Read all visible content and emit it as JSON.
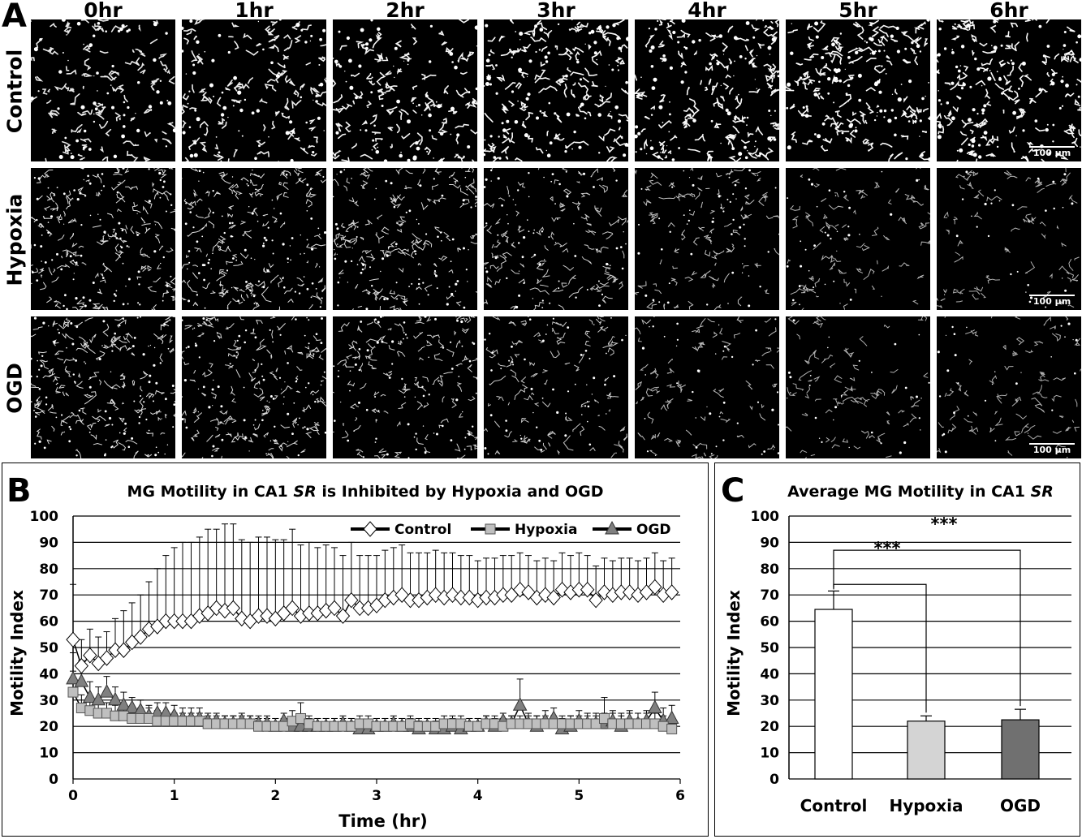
{
  "panel_a": {
    "letter": "A",
    "columns": [
      "0hr",
      "1hr",
      "2hr",
      "3hr",
      "4hr",
      "5hr",
      "6hr"
    ],
    "rows": [
      {
        "name": "Control",
        "density": [
          0.55,
          0.6,
          0.65,
          0.75,
          0.75,
          0.75,
          0.75
        ],
        "bright": [
          0.8,
          0.85,
          0.9,
          0.95,
          0.95,
          0.95,
          0.95
        ]
      },
      {
        "name": "Hypoxia",
        "density": [
          0.9,
          0.85,
          0.8,
          0.6,
          0.45,
          0.3,
          0.25
        ],
        "bright": [
          0.7,
          0.7,
          0.65,
          0.55,
          0.45,
          0.35,
          0.3
        ]
      },
      {
        "name": "OGD",
        "density": [
          0.9,
          0.8,
          0.65,
          0.5,
          0.35,
          0.25,
          0.25
        ],
        "bright": [
          0.7,
          0.65,
          0.6,
          0.5,
          0.4,
          0.3,
          0.3
        ]
      }
    ],
    "scale_label": "100 µm"
  },
  "panel_b": {
    "letter": "B",
    "title_pre": "MG Motility in CA1 ",
    "title_italic": "SR",
    "title_post": " is Inhibited by Hypoxia and OGD",
    "ylabel": "Motility Index",
    "xlabel": "Time  (hr)",
    "legend": [
      "Control",
      "Hypoxia",
      "OGD"
    ]
  },
  "panel_c": {
    "letter": "C",
    "title_pre": "Average MG Motility in CA1 ",
    "title_italic": "SR",
    "ylabel": "Motility Index",
    "sig1": "***",
    "sig2": "***"
  },
  "chart_data": [
    {
      "type": "line",
      "ylabel": "Motility Index",
      "xlabel": "Time  (hr)",
      "xlim": [
        0,
        6
      ],
      "ylim": [
        0,
        100
      ],
      "xticks": [
        0,
        1,
        2,
        3,
        4,
        5,
        6
      ],
      "yticks": [
        0,
        10,
        20,
        30,
        40,
        50,
        60,
        70,
        80,
        90,
        100
      ],
      "grid": "horizontal",
      "legend_position": "top-right",
      "series": [
        {
          "name": "Control",
          "color": "#ffffff",
          "marker": "diamond",
          "x": [
            0,
            0.083,
            0.167,
            0.25,
            0.333,
            0.417,
            0.5,
            0.583,
            0.667,
            0.75,
            0.833,
            0.917,
            1.0,
            1.083,
            1.167,
            1.25,
            1.333,
            1.417,
            1.5,
            1.583,
            1.667,
            1.75,
            1.833,
            1.917,
            2.0,
            2.083,
            2.167,
            2.25,
            2.333,
            2.417,
            2.5,
            2.583,
            2.667,
            2.75,
            2.833,
            2.917,
            3.0,
            3.083,
            3.167,
            3.25,
            3.333,
            3.417,
            3.5,
            3.583,
            3.667,
            3.75,
            3.833,
            3.917,
            4.0,
            4.083,
            4.167,
            4.25,
            4.333,
            4.417,
            4.5,
            4.583,
            4.667,
            4.75,
            4.833,
            4.917,
            5.0,
            5.083,
            5.167,
            5.25,
            5.333,
            5.417,
            5.5,
            5.583,
            5.667,
            5.75,
            5.833,
            5.917
          ],
          "y": [
            53,
            43,
            47,
            44,
            46,
            49,
            49,
            52,
            54,
            57,
            58,
            60,
            60,
            60,
            60,
            62,
            63,
            65,
            64,
            65,
            61,
            60,
            62,
            62,
            61,
            63,
            65,
            62,
            63,
            63,
            64,
            65,
            62,
            68,
            65,
            65,
            66,
            68,
            69,
            70,
            68,
            68,
            69,
            70,
            69,
            70,
            69,
            69,
            68,
            69,
            69,
            70,
            70,
            72,
            71,
            69,
            70,
            69,
            72,
            71,
            72,
            72,
            68,
            71,
            70,
            71,
            71,
            70,
            71,
            73,
            70,
            71
          ],
          "err": [
            21,
            10,
            10,
            10,
            10,
            12,
            15,
            15,
            16,
            18,
            22,
            25,
            28,
            30,
            30,
            30,
            32,
            30,
            33,
            32,
            30,
            30,
            30,
            30,
            30,
            28,
            30,
            27,
            27,
            25,
            25,
            23,
            23,
            22,
            20,
            20,
            19,
            19,
            19,
            19,
            18,
            18,
            17,
            17,
            17,
            16,
            16,
            16,
            15,
            15,
            15,
            15,
            15,
            14,
            14,
            14,
            14,
            14,
            14,
            14,
            14,
            13,
            13,
            13,
            13,
            13,
            13,
            13,
            13,
            13,
            13,
            13
          ]
        },
        {
          "name": "Hypoxia",
          "color": "#bfbfbf",
          "marker": "square",
          "x": [
            0,
            0.083,
            0.167,
            0.25,
            0.333,
            0.417,
            0.5,
            0.583,
            0.667,
            0.75,
            0.833,
            0.917,
            1.0,
            1.083,
            1.167,
            1.25,
            1.333,
            1.417,
            1.5,
            1.583,
            1.667,
            1.75,
            1.833,
            1.917,
            2.0,
            2.083,
            2.167,
            2.25,
            2.333,
            2.417,
            2.5,
            2.583,
            2.667,
            2.75,
            2.833,
            2.917,
            3.0,
            3.083,
            3.167,
            3.25,
            3.333,
            3.417,
            3.5,
            3.583,
            3.667,
            3.75,
            3.833,
            3.917,
            4.0,
            4.083,
            4.167,
            4.25,
            4.333,
            4.417,
            4.5,
            4.583,
            4.667,
            4.75,
            4.833,
            4.917,
            5.0,
            5.083,
            5.167,
            5.25,
            5.333,
            5.417,
            5.5,
            5.583,
            5.667,
            5.75,
            5.833,
            5.917
          ],
          "y": [
            33,
            27,
            26,
            25,
            25,
            24,
            24,
            23,
            23,
            23,
            22,
            22,
            22,
            22,
            22,
            22,
            21,
            21,
            21,
            21,
            21,
            21,
            20,
            20,
            20,
            20,
            22,
            23,
            21,
            20,
            20,
            20,
            20,
            20,
            21,
            21,
            20,
            20,
            20,
            20,
            21,
            20,
            20,
            20,
            21,
            21,
            21,
            20,
            20,
            21,
            21,
            20,
            21,
            21,
            21,
            21,
            21,
            21,
            21,
            21,
            21,
            21,
            21,
            23,
            21,
            21,
            21,
            21,
            21,
            21,
            20,
            19
          ],
          "err": [
            8,
            5,
            5,
            4,
            4,
            4,
            4,
            4,
            4,
            4,
            4,
            3,
            3,
            3,
            3,
            3,
            3,
            3,
            3,
            3,
            3,
            3,
            3,
            3,
            3,
            3,
            4,
            6,
            3,
            3,
            3,
            3,
            3,
            3,
            3,
            3,
            3,
            3,
            3,
            3,
            3,
            3,
            3,
            3,
            3,
            3,
            3,
            3,
            3,
            3,
            3,
            3,
            3,
            3,
            3,
            3,
            3,
            3,
            3,
            3,
            3,
            3,
            3,
            8,
            4,
            4,
            4,
            4,
            4,
            4,
            4,
            4
          ]
        },
        {
          "name": "OGD",
          "color": "#808080",
          "marker": "triangle",
          "x": [
            0,
            0.083,
            0.167,
            0.25,
            0.333,
            0.417,
            0.5,
            0.583,
            0.667,
            0.75,
            0.833,
            0.917,
            1.0,
            1.083,
            1.167,
            1.25,
            1.333,
            1.417,
            1.5,
            1.583,
            1.667,
            1.75,
            1.833,
            1.917,
            2.0,
            2.083,
            2.167,
            2.25,
            2.333,
            2.417,
            2.5,
            2.583,
            2.667,
            2.75,
            2.833,
            2.917,
            3.0,
            3.083,
            3.167,
            3.25,
            3.333,
            3.417,
            3.5,
            3.583,
            3.667,
            3.75,
            3.833,
            3.917,
            4.0,
            4.083,
            4.167,
            4.25,
            4.333,
            4.417,
            4.5,
            4.583,
            4.667,
            4.75,
            4.833,
            4.917,
            5.0,
            5.083,
            5.167,
            5.25,
            5.333,
            5.417,
            5.5,
            5.583,
            5.667,
            5.75,
            5.833,
            5.917
          ],
          "y": [
            38,
            37,
            31,
            30,
            33,
            30,
            28,
            27,
            26,
            24,
            25,
            25,
            24,
            23,
            23,
            23,
            22,
            22,
            21,
            21,
            22,
            21,
            21,
            21,
            20,
            22,
            20,
            20,
            20,
            20,
            20,
            20,
            21,
            20,
            19,
            19,
            20,
            20,
            21,
            20,
            20,
            19,
            20,
            19,
            19,
            20,
            19,
            20,
            20,
            21,
            20,
            22,
            21,
            28,
            21,
            20,
            22,
            23,
            19,
            20,
            22,
            21,
            21,
            21,
            22,
            20,
            22,
            21,
            22,
            27,
            22,
            23
          ],
          "err": [
            10,
            8,
            6,
            5,
            6,
            5,
            5,
            4,
            4,
            4,
            4,
            4,
            4,
            4,
            4,
            4,
            3,
            3,
            3,
            3,
            3,
            3,
            3,
            3,
            3,
            3,
            3,
            3,
            3,
            3,
            3,
            3,
            3,
            3,
            3,
            3,
            3,
            3,
            3,
            3,
            3,
            3,
            3,
            3,
            3,
            3,
            3,
            3,
            3,
            3,
            3,
            3,
            3,
            10,
            4,
            4,
            4,
            4,
            4,
            4,
            4,
            4,
            4,
            4,
            4,
            4,
            4,
            4,
            4,
            6,
            5,
            5
          ]
        }
      ]
    },
    {
      "type": "bar",
      "ylabel": "Motility Index",
      "ylim": [
        0,
        100
      ],
      "yticks": [
        0,
        10,
        20,
        30,
        40,
        50,
        60,
        70,
        80,
        90,
        100
      ],
      "grid": "horizontal",
      "categories": [
        "Control",
        "Hypoxia",
        "OGD"
      ],
      "values": [
        64.5,
        22,
        22.5
      ],
      "errors": [
        7,
        2,
        4
      ],
      "colors": [
        "#ffffff",
        "#d4d4d4",
        "#707070"
      ],
      "annotations": [
        "***",
        "***"
      ]
    }
  ]
}
